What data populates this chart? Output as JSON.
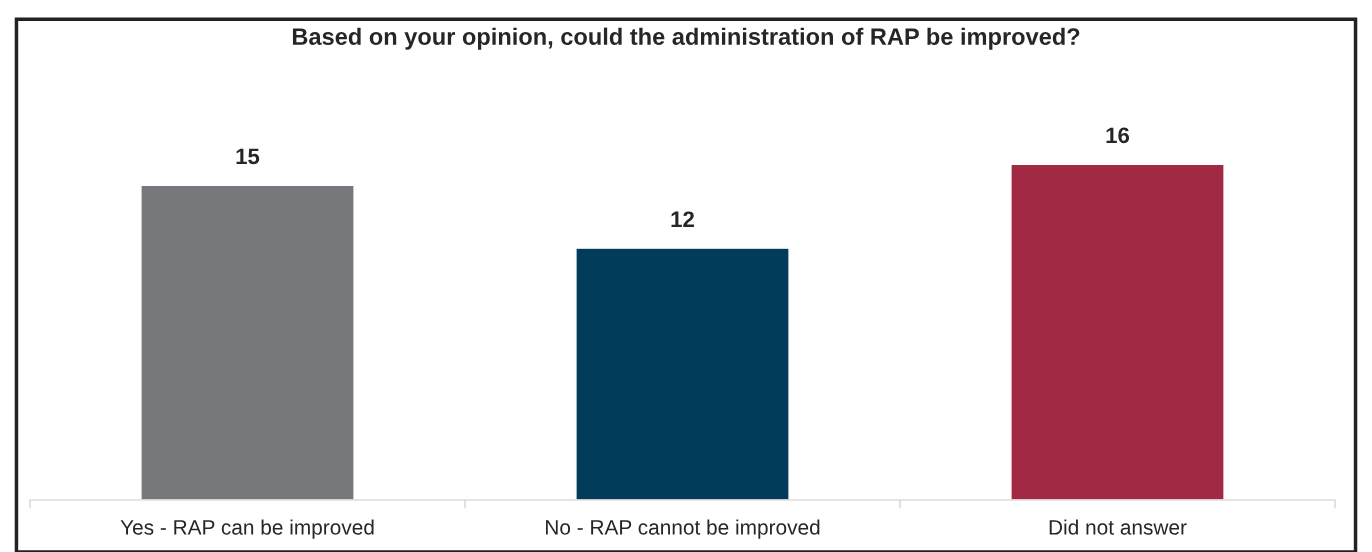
{
  "chart_data": {
    "type": "bar",
    "title": "Based on your opinion, could the administration of RAP be improved?",
    "categories": [
      "Yes - RAP can be improved",
      "No - RAP cannot be improved",
      "Did not answer"
    ],
    "values": [
      15,
      12,
      16
    ],
    "colors": [
      "#77787b",
      "#033c5a",
      "#a12944"
    ],
    "data_labels": true,
    "grid": false,
    "legend": false
  }
}
